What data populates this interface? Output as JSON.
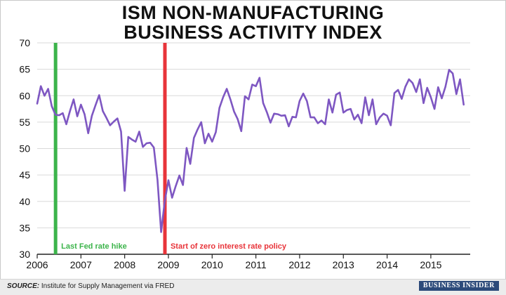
{
  "title_line1": "ISM NON-MANUFACTURING",
  "title_line2": "BUSINESS ACTIVITY INDEX",
  "source_prefix": "SOURCE:",
  "source_text": "Institute for Supply Management via FRED",
  "brand": "BUSINESS INSIDER",
  "chart_data": {
    "type": "line",
    "title": "ISM NON-MANUFACTURING BUSINESS ACTIVITY INDEX",
    "xlabel": "",
    "ylabel": "",
    "ylim": [
      30,
      70
    ],
    "yticks": [
      30,
      35,
      40,
      45,
      50,
      55,
      60,
      65,
      70
    ],
    "xlim": [
      2006.0,
      2015.9
    ],
    "xticks": [
      2006,
      2007,
      2008,
      2009,
      2010,
      2011,
      2012,
      2013,
      2014,
      2015
    ],
    "grid": true,
    "line_color": "#7e57c2",
    "annotations": [
      {
        "x": 2006.42,
        "label": "Last Fed rate hike",
        "color": "#3cb44b"
      },
      {
        "x": 2008.92,
        "label": "Start of zero interest rate policy",
        "color": "#e8343a"
      }
    ],
    "series": [
      {
        "start": "2006-01",
        "frequency": "monthly",
        "values": [
          58.5,
          61.8,
          60.0,
          61.3,
          58.0,
          56.4,
          56.3,
          56.7,
          54.6,
          57.1,
          59.3,
          56.1,
          58.3,
          56.5,
          52.9,
          56.2,
          58.2,
          60.1,
          57.1,
          55.8,
          54.4,
          55.1,
          55.7,
          53.2,
          42.0,
          52.2,
          51.7,
          51.3,
          53.2,
          50.3,
          51.0,
          51.1,
          50.2,
          44.1,
          34.2,
          40.1,
          44.0,
          40.7,
          42.9,
          44.9,
          43.1,
          50.1,
          47.1,
          52.0,
          53.6,
          55.0,
          51.0,
          52.8,
          51.3,
          53.1,
          57.7,
          59.7,
          61.3,
          59.3,
          57.0,
          55.6,
          53.3,
          59.9,
          59.3,
          62.1,
          61.8,
          63.4,
          58.6,
          56.9,
          54.9,
          56.6,
          56.5,
          56.2,
          56.3,
          54.2,
          56.0,
          55.9,
          59.0,
          60.4,
          59.0,
          55.9,
          55.9,
          54.8,
          55.3,
          54.6,
          59.3,
          56.8,
          60.2,
          60.6,
          56.8,
          57.3,
          57.5,
          55.5,
          56.4,
          54.8,
          59.7,
          56.3,
          59.3,
          54.6,
          55.9,
          56.6,
          56.2,
          54.4,
          60.5,
          61.1,
          59.4,
          61.7,
          63.1,
          62.4,
          60.7,
          63.1,
          58.6,
          61.5,
          59.7,
          57.5,
          61.6,
          59.5,
          61.7,
          64.9,
          64.2,
          60.3,
          63.1,
          58.3
        ]
      }
    ]
  }
}
